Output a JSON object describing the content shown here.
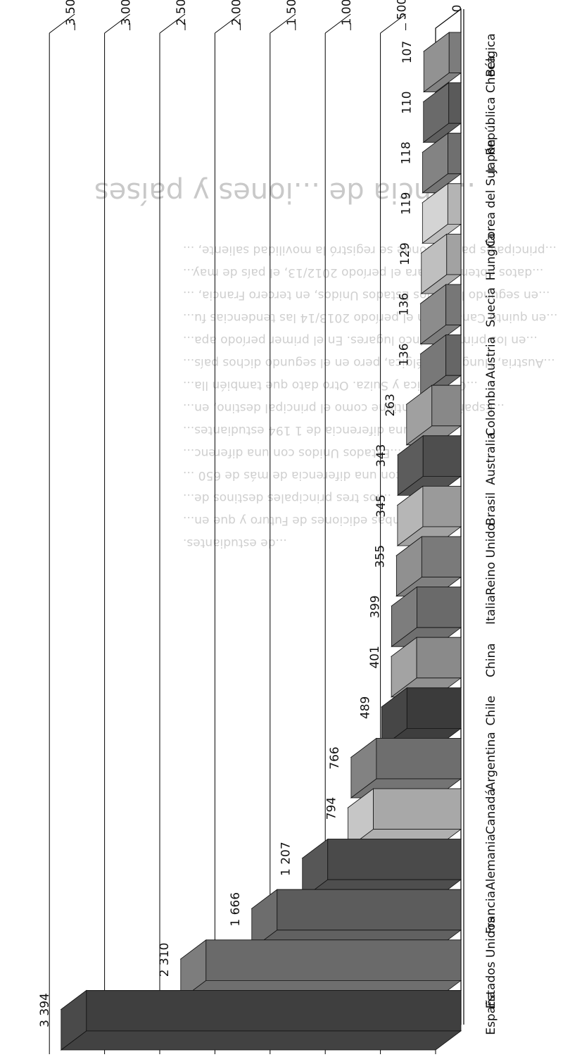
{
  "background_text": {
    "heading": "...encia de ...iones y países",
    "lines": [
      "...principales países donde se registró la movilidad saliente, ...",
      "...datos obtenidos para el período 2012/13, el país de may...",
      "...en segundo lugar los Estados Unidos, en tercero Francia, ...",
      "...en quinto Canadá. En el período 2013/14 las tendencias fu...",
      "...en los primeros cinco lugares. En el primer período apa...",
      "...Austria, Hungría y Bélgica, pero en el segundo dichos país...",
      "...Costa Rica y Suiza. Otro dato que también lla...",
      "...España se mantiene como el principal destino, en...",
      "...existe una diferencia de 1 194 estudiantes...",
      "...Estados Unidos con una diferenc...",
      "...Francia con una diferencia de más de 650 ...",
      "...los tres principales destinos de...",
      "...en ambas ediciones de Futuro y que en...",
      "...de estudiantes."
    ]
  },
  "chart_data": {
    "type": "bar",
    "rendering": "3d-bars, image rotated 180 degrees",
    "categories": [
      "España",
      "Estados Unidos",
      "Francia",
      "Alemania",
      "Canadá",
      "Argentina",
      "Chile",
      "China",
      "Italia",
      "Reino Unido",
      "Brasil",
      "Australia",
      "Colombia",
      "Austria",
      "Suecia",
      "Hungría",
      "Corea del Sur",
      "Japón",
      "República Checa",
      "Bélgica"
    ],
    "values": [
      3394,
      2310,
      1666,
      1207,
      794,
      766,
      489,
      401,
      399,
      355,
      345,
      343,
      263,
      136,
      136,
      129,
      119,
      118,
      110,
      107
    ],
    "value_labels": [
      "3 394",
      "2 310",
      "1 666",
      "1 207",
      "794",
      "766",
      "489",
      "401",
      "399",
      "355",
      "345",
      "343",
      "263",
      "136",
      "136",
      "129",
      "119",
      "118",
      "110",
      "107"
    ],
    "y_ticks": [
      "0",
      "500",
      "1 000",
      "1 500",
      "2 000",
      "2 500",
      "3 000",
      "3 500"
    ],
    "y_tick_values": [
      0,
      500,
      1000,
      1500,
      2000,
      2500,
      3000,
      3500
    ],
    "ylim": [
      0,
      3500
    ],
    "grid": true,
    "title": "",
    "xlabel": "",
    "ylabel": "",
    "colors": {
      "front": [
        "#3f3f3f",
        "#6a6a6a",
        "#5c5c5c",
        "#4a4a4a",
        "#a8a8a8",
        "#6e6e6e",
        "#3b3b3b",
        "#8a8a8a",
        "#6a6a6a",
        "#7a7a7a",
        "#9a9a9a",
        "#4e4e4e",
        "#888888",
        "#666666",
        "#777777",
        "#a2a2a2",
        "#b4b4b4",
        "#6f6f6f",
        "#5a5a5a",
        "#7c7c7c"
      ],
      "grid": "#000000",
      "floor_edge": "#000000"
    }
  }
}
